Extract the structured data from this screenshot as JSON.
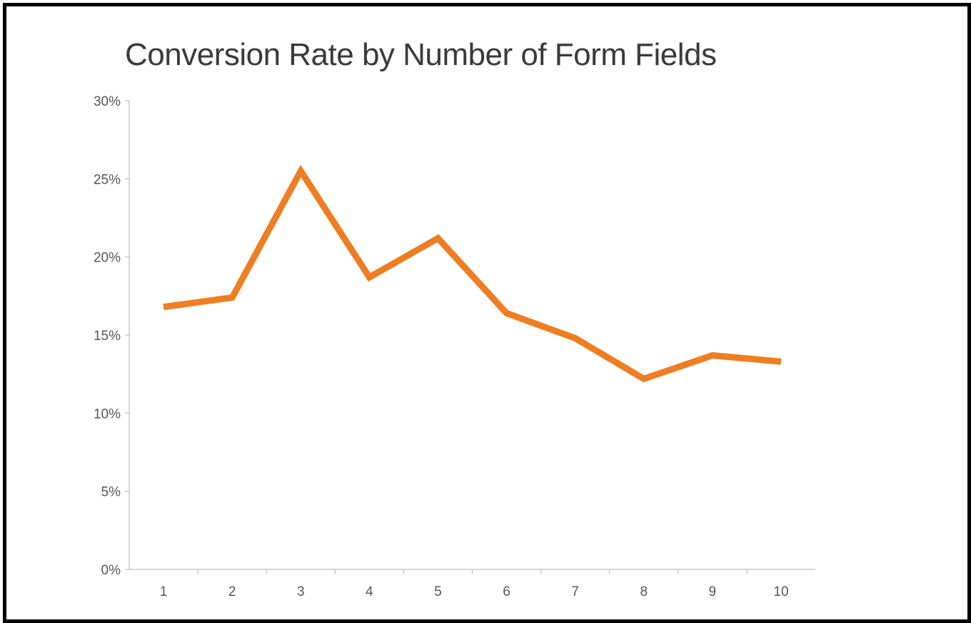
{
  "chart_data": {
    "type": "line",
    "title": "Conversion Rate by Number of Form Fields",
    "xlabel": "",
    "ylabel": "",
    "categories": [
      "1",
      "2",
      "3",
      "4",
      "5",
      "6",
      "7",
      "8",
      "9",
      "10"
    ],
    "series": [
      {
        "values": [
          16.8,
          17.4,
          25.5,
          18.7,
          21.2,
          16.4,
          14.8,
          12.2,
          13.7,
          13.3
        ]
      }
    ],
    "ylim": [
      0,
      30
    ],
    "yticks": [
      0,
      5,
      10,
      15,
      20,
      25,
      30
    ],
    "ytick_labels": [
      "0%",
      "5%",
      "10%",
      "15%",
      "20%",
      "25%",
      "30%"
    ],
    "grid": false,
    "colors": {
      "line": "#ef7d22",
      "axis": "#bdbdbd",
      "frame": "#000000"
    }
  }
}
